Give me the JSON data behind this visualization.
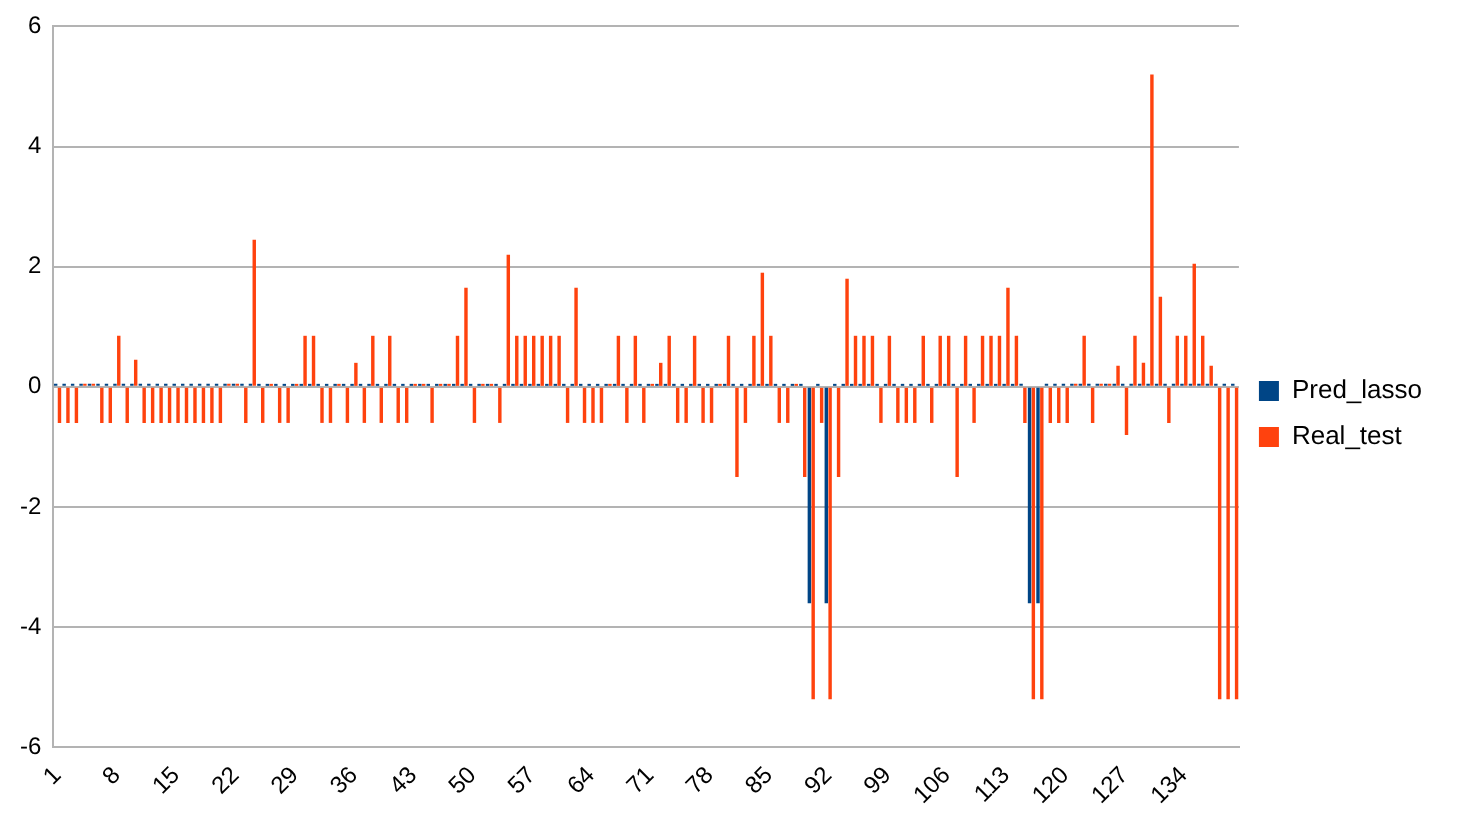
{
  "chart_data": {
    "type": "bar",
    "categories": [
      "1",
      null,
      null,
      null,
      null,
      null,
      null,
      "8",
      null,
      null,
      null,
      null,
      null,
      null,
      "15",
      null,
      null,
      null,
      null,
      null,
      null,
      "22",
      null,
      null,
      null,
      null,
      null,
      null,
      "29",
      null,
      null,
      null,
      null,
      null,
      null,
      "36",
      null,
      null,
      null,
      null,
      null,
      null,
      "43",
      null,
      null,
      null,
      null,
      null,
      null,
      "50",
      null,
      null,
      null,
      null,
      null,
      null,
      "57",
      null,
      null,
      null,
      null,
      null,
      null,
      "64",
      null,
      null,
      null,
      null,
      null,
      null,
      "71",
      null,
      null,
      null,
      null,
      null,
      null,
      "78",
      null,
      null,
      null,
      null,
      null,
      null,
      "85",
      null,
      null,
      null,
      null,
      null,
      null,
      "92",
      null,
      null,
      null,
      null,
      null,
      null,
      "99",
      null,
      null,
      null,
      null,
      null,
      null,
      "106",
      null,
      null,
      null,
      null,
      null,
      null,
      "113",
      null,
      null,
      null,
      null,
      null,
      null,
      "120",
      null,
      null,
      null,
      null,
      null,
      null,
      "127",
      null,
      null,
      null,
      null,
      null,
      null,
      "134",
      null,
      null,
      null,
      null,
      null,
      null
    ],
    "series": [
      {
        "name": "Pred_lasso",
        "color": "#004586",
        "values": [
          0.05,
          0.05,
          0.05,
          0.05,
          0.05,
          0.05,
          0.05,
          0.05,
          0.05,
          0.05,
          0.05,
          0.05,
          0.05,
          0.05,
          0.05,
          0.05,
          0.05,
          0.05,
          0.05,
          0.05,
          0.05,
          0.05,
          0.05,
          0.05,
          0.05,
          0.05,
          0.05,
          0.05,
          0.05,
          0.05,
          0.05,
          0.05,
          0.05,
          0.05,
          0.05,
          0.05,
          0.05,
          0.05,
          0.05,
          0.05,
          0.05,
          0.05,
          0.05,
          0.05,
          0.05,
          0.05,
          0.05,
          0.05,
          0.05,
          0.05,
          0.05,
          0.05,
          0.05,
          0.05,
          0.05,
          0.05,
          0.05,
          0.05,
          0.05,
          0.05,
          0.05,
          0.05,
          0.05,
          0.05,
          0.05,
          0.05,
          0.05,
          0.05,
          0.05,
          0.05,
          0.05,
          0.05,
          0.05,
          0.05,
          0.05,
          0.05,
          0.05,
          0.05,
          0.05,
          0.05,
          0.05,
          0.05,
          0.05,
          0.05,
          0.05,
          0.05,
          0.05,
          0.05,
          0.05,
          -3.6,
          0.05,
          -3.6,
          0.05,
          0.05,
          0.05,
          0.05,
          0.05,
          0.05,
          0.05,
          0.05,
          0.05,
          0.05,
          0.05,
          0.05,
          0.05,
          0.05,
          0.05,
          0.05,
          0.05,
          0.05,
          0.05,
          0.05,
          0.05,
          0.05,
          0.05,
          -3.6,
          -3.6,
          0.05,
          0.05,
          0.05,
          0.05,
          0.05,
          0.05,
          0.05,
          0.05,
          0.05,
          0.05,
          0.05,
          0.05,
          0.05,
          0.05,
          0.05,
          0.05,
          0.05,
          0.05,
          0.05,
          0.05,
          0.05,
          0.05,
          0.05
        ]
      },
      {
        "name": "Real_test",
        "color": "#ff420e",
        "values": [
          -0.6,
          -0.6,
          -0.6,
          0.05,
          0.05,
          -0.6,
          -0.6,
          0.85,
          -0.6,
          0.45,
          -0.6,
          -0.6,
          -0.6,
          -0.6,
          -0.6,
          -0.6,
          -0.6,
          -0.6,
          -0.6,
          -0.6,
          0.05,
          0.05,
          -0.6,
          2.45,
          -0.6,
          0.05,
          -0.6,
          -0.6,
          0.05,
          0.85,
          0.85,
          -0.6,
          -0.6,
          0.05,
          -0.6,
          0.4,
          -0.6,
          0.85,
          -0.6,
          0.85,
          -0.6,
          -0.6,
          0.05,
          0.05,
          -0.6,
          0.05,
          0.05,
          0.85,
          1.65,
          -0.6,
          0.05,
          0.05,
          -0.6,
          2.2,
          0.85,
          0.85,
          0.85,
          0.85,
          0.85,
          0.85,
          -0.6,
          1.65,
          -0.6,
          -0.6,
          -0.6,
          0.05,
          0.85,
          -0.6,
          0.85,
          -0.6,
          0.05,
          0.4,
          0.85,
          -0.6,
          -0.6,
          0.85,
          -0.6,
          -0.6,
          0.05,
          0.85,
          -1.5,
          -0.6,
          0.85,
          1.9,
          0.85,
          -0.6,
          -0.6,
          0.05,
          -1.5,
          -5.2,
          -0.6,
          -5.2,
          -1.5,
          1.8,
          0.85,
          0.85,
          0.85,
          -0.6,
          0.85,
          -0.6,
          -0.6,
          -0.6,
          0.85,
          -0.6,
          0.85,
          0.85,
          -1.5,
          0.85,
          -0.6,
          0.85,
          0.85,
          0.85,
          1.65,
          0.85,
          -0.6,
          -5.2,
          -5.2,
          -0.6,
          -0.6,
          -0.6,
          0.05,
          0.85,
          -0.6,
          0.05,
          0.05,
          0.35,
          -0.8,
          0.85,
          0.4,
          5.2,
          1.5,
          -0.6,
          0.85,
          0.85,
          2.05,
          0.85,
          0.35,
          -5.2,
          -5.2,
          -5.2
        ]
      }
    ],
    "ylim": [
      -6,
      6
    ],
    "yticks": [
      -6,
      -4,
      -2,
      0,
      2,
      4,
      6
    ],
    "grid": "y",
    "legend": "right"
  }
}
